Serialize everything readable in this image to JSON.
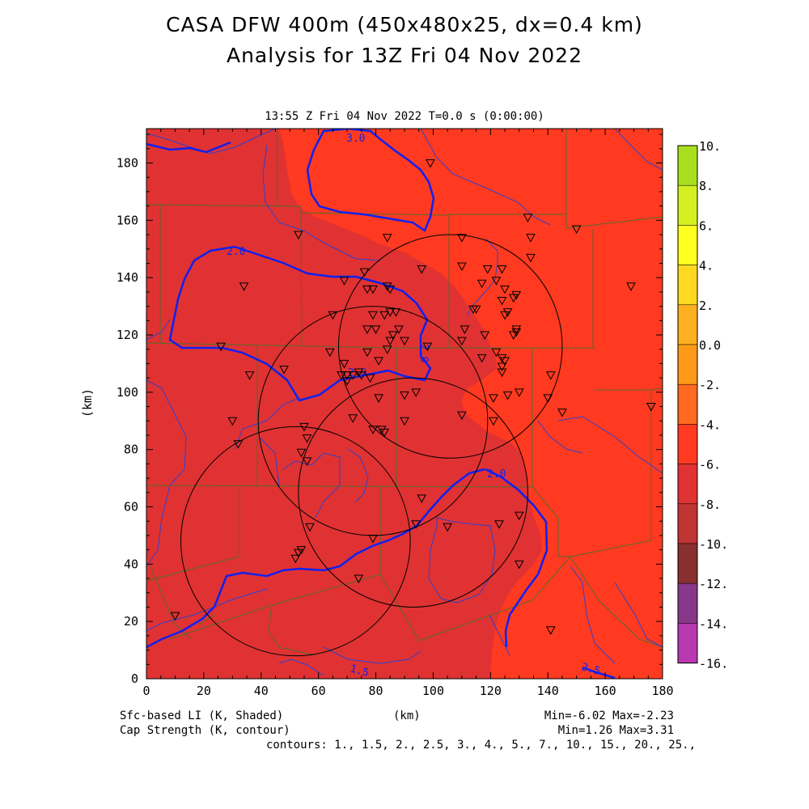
{
  "header": {
    "title_line1": "CASA DFW 400m (450x480x25, dx=0.4 km)",
    "title_line2": "Analysis for 13Z Fri 04 Nov 2022",
    "valid_time": "13:55 Z Fri 04 Nov 2022    T=0.0 s (0:00:00)"
  },
  "axes": {
    "x_label": "(km)",
    "y_label": "(km)",
    "x_ticks": [
      "0",
      "20",
      "40",
      "60",
      "80",
      "100",
      "120",
      "140",
      "160",
      "180"
    ],
    "y_ticks": [
      "0",
      "20",
      "40",
      "60",
      "80",
      "100",
      "120",
      "140",
      "160",
      "180"
    ],
    "x_range": [
      0,
      180
    ],
    "y_range": [
      0,
      192
    ]
  },
  "colorbar": {
    "labels": [
      "10.",
      "8.",
      "6.",
      "4.",
      "2.",
      "0.0",
      "-2.",
      "-4.",
      "-6.",
      "-8.",
      "-10.",
      "-12.",
      "-14.",
      "-16."
    ],
    "colors": [
      "#a8e020",
      "#d4f020",
      "#ffff20",
      "#ffd820",
      "#ffb020",
      "#ff9a18",
      "#ff6a20",
      "#ff3a20",
      "#e03232",
      "#c03434",
      "#883030",
      "#883888",
      "#b838b0",
      "#d848d8"
    ]
  },
  "field_colors": {
    "light_region": "#ff3a20",
    "dark_region": "#e03232"
  },
  "contour_labels": [
    "3.0",
    "2.0",
    "2.0",
    "2.0",
    "2.0",
    "1.5",
    "2.5"
  ],
  "footer": {
    "left1": "Sfc-based LI (K, Shaded)",
    "left2": "Cap Strength (K, contour)",
    "center": "(km)",
    "right1": "Min=-6.02 Max=-2.23",
    "right2": "Min=1.26 Max=3.31",
    "contours": "contours: 1., 1.5, 2., 2.5, 3., 4., 5., 7., 10., 15., 20., 25.,"
  },
  "radar_rings": [
    {
      "cx": 106,
      "cy": 116,
      "r": 39
    },
    {
      "cx": 79,
      "cy": 90,
      "r": 40
    },
    {
      "cx": 93,
      "cy": 65,
      "r": 40
    },
    {
      "cx": 52,
      "cy": 48,
      "r": 40
    }
  ],
  "stations": [
    [
      99,
      180
    ],
    [
      53,
      155
    ],
    [
      84,
      154
    ],
    [
      110,
      154
    ],
    [
      133,
      161
    ],
    [
      134,
      154
    ],
    [
      134,
      147
    ],
    [
      110,
      144
    ],
    [
      119,
      143
    ],
    [
      124,
      143
    ],
    [
      96,
      143
    ],
    [
      69,
      139
    ],
    [
      77,
      136
    ],
    [
      79,
      136
    ],
    [
      84,
      137
    ],
    [
      85,
      136
    ],
    [
      76,
      142
    ],
    [
      122,
      139
    ],
    [
      117,
      138
    ],
    [
      125,
      136
    ],
    [
      129,
      134
    ],
    [
      124,
      132
    ],
    [
      128,
      133
    ],
    [
      114,
      129
    ],
    [
      115,
      129
    ],
    [
      125,
      127
    ],
    [
      126,
      128
    ],
    [
      65,
      127
    ],
    [
      79,
      127
    ],
    [
      83,
      127
    ],
    [
      85,
      128
    ],
    [
      87,
      128
    ],
    [
      111,
      122
    ],
    [
      118,
      120
    ],
    [
      128,
      120
    ],
    [
      129,
      122
    ],
    [
      129,
      121
    ],
    [
      77,
      122
    ],
    [
      80,
      122
    ],
    [
      88,
      122
    ],
    [
      85,
      118
    ],
    [
      90,
      118
    ],
    [
      84,
      115
    ],
    [
      98,
      116
    ],
    [
      86,
      120
    ],
    [
      77,
      114
    ],
    [
      64,
      114
    ],
    [
      69,
      110
    ],
    [
      81,
      111
    ],
    [
      124,
      112
    ],
    [
      125,
      111
    ],
    [
      124,
      107
    ],
    [
      122,
      114
    ],
    [
      117,
      112
    ],
    [
      110,
      118
    ],
    [
      124,
      109
    ],
    [
      141,
      106
    ],
    [
      70,
      104
    ],
    [
      68,
      106
    ],
    [
      74,
      107
    ],
    [
      75,
      106
    ],
    [
      72,
      106
    ],
    [
      78,
      105
    ],
    [
      81,
      98
    ],
    [
      90,
      99
    ],
    [
      94,
      100
    ],
    [
      121,
      98
    ],
    [
      126,
      99
    ],
    [
      130,
      100
    ],
    [
      140,
      98
    ],
    [
      145,
      93
    ],
    [
      176,
      95
    ],
    [
      150,
      157
    ],
    [
      169,
      137
    ],
    [
      34,
      137
    ],
    [
      26,
      116
    ],
    [
      36,
      106
    ],
    [
      48,
      108
    ],
    [
      30,
      90
    ],
    [
      32,
      82
    ],
    [
      55,
      88
    ],
    [
      56,
      84
    ],
    [
      54,
      79
    ],
    [
      56,
      76
    ],
    [
      72,
      91
    ],
    [
      79,
      87
    ],
    [
      82,
      87
    ],
    [
      83,
      86
    ],
    [
      90,
      90
    ],
    [
      110,
      92
    ],
    [
      121,
      90
    ],
    [
      96,
      63
    ],
    [
      130,
      57
    ],
    [
      123,
      54
    ],
    [
      105,
      53
    ],
    [
      94,
      54
    ],
    [
      79,
      49
    ],
    [
      57,
      53
    ],
    [
      53,
      44
    ],
    [
      52,
      42
    ],
    [
      54,
      45
    ],
    [
      74,
      35
    ],
    [
      130,
      40
    ],
    [
      141,
      17
    ],
    [
      10,
      22
    ],
    [
      70,
      106
    ]
  ]
}
